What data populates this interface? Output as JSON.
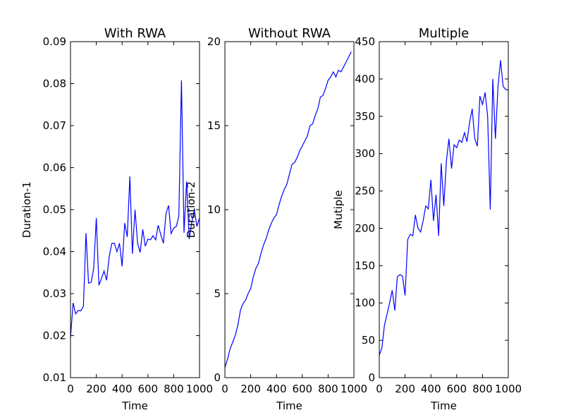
{
  "chart_data": [
    {
      "type": "line",
      "title": "With RWA",
      "xlabel": "Time",
      "ylabel": "Duration-1",
      "xlim": [
        0,
        1000
      ],
      "ylim": [
        0.01,
        0.09
      ],
      "xticks": [
        "0",
        "200",
        "400",
        "600",
        "800",
        "1000"
      ],
      "yticks": [
        "0.01",
        "0.02",
        "0.03",
        "0.04",
        "0.05",
        "0.06",
        "0.07",
        "0.08",
        "0.09"
      ],
      "xtick_values": [
        0,
        200,
        400,
        600,
        800,
        1000
      ],
      "ytick_values": [
        0.01,
        0.02,
        0.03,
        0.04,
        0.05,
        0.06,
        0.07,
        0.08,
        0.09
      ],
      "line_color": "#0000ff",
      "x": [
        0,
        20,
        40,
        60,
        80,
        100,
        120,
        140,
        160,
        180,
        200,
        220,
        240,
        260,
        280,
        300,
        320,
        340,
        360,
        380,
        400,
        420,
        440,
        460,
        480,
        500,
        520,
        540,
        560,
        580,
        600,
        620,
        640,
        660,
        680,
        700,
        720,
        740,
        760,
        780,
        800,
        820,
        840,
        860,
        880,
        900,
        920,
        940,
        960,
        980,
        1000
      ],
      "y": [
        0.0195,
        0.0278,
        0.0252,
        0.026,
        0.0259,
        0.027,
        0.0444,
        0.0325,
        0.0327,
        0.036,
        0.048,
        0.032,
        0.0336,
        0.0354,
        0.0332,
        0.0388,
        0.042,
        0.042,
        0.04,
        0.042,
        0.0365,
        0.0468,
        0.0435,
        0.0579,
        0.0395,
        0.05,
        0.042,
        0.0398,
        0.0453,
        0.0413,
        0.043,
        0.0428,
        0.0438,
        0.0428,
        0.0463,
        0.044,
        0.042,
        0.049,
        0.051,
        0.0443,
        0.0456,
        0.046,
        0.0485,
        0.0808,
        0.0445,
        0.0567,
        0.043,
        0.047,
        0.05,
        0.046,
        0.048
      ]
    },
    {
      "type": "line",
      "title": "Without RWA",
      "xlabel": "Time",
      "ylabel": "Duration-2",
      "xlim": [
        0,
        1000
      ],
      "ylim": [
        0,
        20
      ],
      "xticks": [
        "0",
        "200",
        "400",
        "600",
        "800",
        "1000"
      ],
      "yticks": [
        "0",
        "5",
        "10",
        "15",
        "20"
      ],
      "xtick_values": [
        0,
        200,
        400,
        600,
        800,
        1000
      ],
      "ytick_values": [
        0,
        5,
        10,
        15,
        20
      ],
      "line_color": "#0000ff",
      "x": [
        0,
        20,
        40,
        60,
        80,
        100,
        120,
        140,
        160,
        180,
        200,
        220,
        240,
        260,
        280,
        300,
        320,
        340,
        360,
        380,
        400,
        420,
        440,
        460,
        480,
        500,
        520,
        540,
        560,
        580,
        600,
        620,
        640,
        660,
        680,
        700,
        720,
        740,
        760,
        780,
        800,
        820,
        840,
        860,
        880,
        900,
        920,
        940,
        960,
        980
      ],
      "y": [
        0.6,
        1.1,
        1.7,
        2.1,
        2.5,
        3.1,
        4.0,
        4.4,
        4.6,
        5.0,
        5.3,
        6.0,
        6.5,
        6.8,
        7.4,
        7.9,
        8.3,
        8.8,
        9.2,
        9.5,
        9.7,
        10.3,
        10.8,
        11.2,
        11.5,
        12.1,
        12.7,
        12.8,
        13.1,
        13.5,
        13.8,
        14.1,
        14.4,
        15.0,
        15.1,
        15.6,
        16.0,
        16.7,
        16.8,
        17.2,
        17.7,
        17.9,
        18.2,
        17.9,
        18.3,
        18.2,
        18.5,
        18.8,
        19.1,
        19.4
      ]
    },
    {
      "type": "line",
      "title": "Multiple",
      "xlabel": "Time",
      "ylabel": "Mutiple",
      "xlim": [
        0,
        1000
      ],
      "ylim": [
        0,
        450
      ],
      "xticks": [
        "0",
        "200",
        "400",
        "600",
        "800",
        "1000"
      ],
      "yticks": [
        "0",
        "50",
        "100",
        "150",
        "200",
        "250",
        "300",
        "350",
        "400",
        "450"
      ],
      "xtick_values": [
        0,
        200,
        400,
        600,
        800,
        1000
      ],
      "ytick_values": [
        0,
        50,
        100,
        150,
        200,
        250,
        300,
        350,
        400,
        450
      ],
      "line_color": "#0000ff",
      "x": [
        0,
        20,
        40,
        60,
        80,
        100,
        120,
        140,
        160,
        180,
        200,
        220,
        240,
        260,
        280,
        300,
        320,
        340,
        360,
        380,
        400,
        420,
        440,
        460,
        480,
        500,
        520,
        540,
        560,
        580,
        600,
        620,
        640,
        660,
        680,
        700,
        720,
        740,
        760,
        780,
        800,
        820,
        840,
        860,
        880,
        900,
        920,
        940,
        960,
        980,
        1000
      ],
      "y": [
        30,
        40,
        70,
        85,
        100,
        117,
        90,
        135,
        138,
        136,
        110,
        185,
        192,
        190,
        218,
        200,
        195,
        210,
        230,
        226,
        265,
        210,
        245,
        190,
        287,
        230,
        290,
        320,
        280,
        312,
        308,
        318,
        315,
        328,
        316,
        342,
        360,
        320,
        310,
        377,
        366,
        382,
        350,
        225,
        400,
        320,
        390,
        425,
        390,
        386,
        385
      ]
    }
  ]
}
